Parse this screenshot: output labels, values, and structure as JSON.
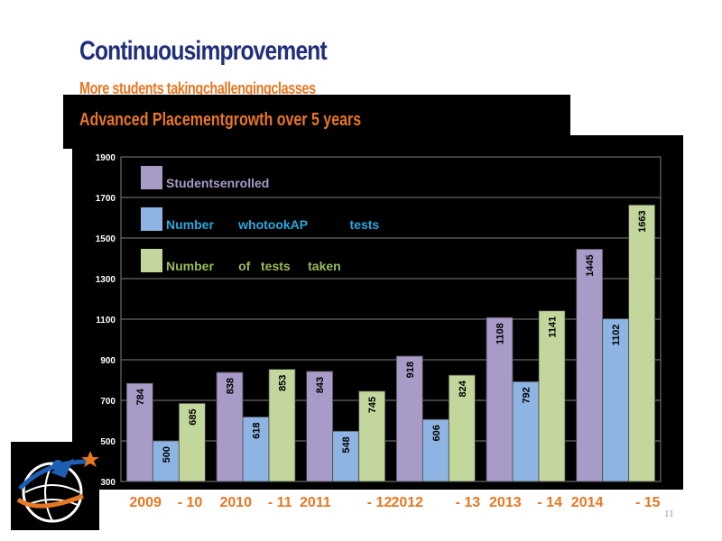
{
  "slide": {
    "title": "Continuousimprovement",
    "subtitle": "More        students              takingchallengingclasses",
    "banner": "Advanced              Placementgrowth                       over      5   years",
    "page_number": "11"
  },
  "colors": {
    "students_enrolled": "#a99bc7",
    "took_ap": "#8db4e2",
    "tests_taken": "#c3d69b",
    "accent_orange": "#e87722",
    "title_navy": "#1f2f7a"
  },
  "chart_data": {
    "type": "bar",
    "categories": [
      "2009    - 10",
      "2010    - 11",
      "2011         - 12",
      "2012        - 13",
      "2013    - 14",
      "2014        - 15"
    ],
    "series": [
      {
        "name": "Studentsenrolled",
        "values": [
          784,
          838,
          843,
          918,
          1108,
          1445
        ]
      },
      {
        "name": "Number       whotookAP            tests",
        "values": [
          500,
          618,
          548,
          606,
          792,
          1102
        ]
      },
      {
        "name": "Number       of   tests     taken",
        "values": [
          685,
          853,
          745,
          824,
          1141,
          1663
        ]
      }
    ],
    "y_ticks": [
      "300",
      "500",
      "700",
      "900",
      "1100",
      "1300",
      "1500",
      "1700",
      "1900"
    ],
    "ylim": [
      300,
      1900
    ],
    "grid": true,
    "legend_position": "top-left"
  }
}
